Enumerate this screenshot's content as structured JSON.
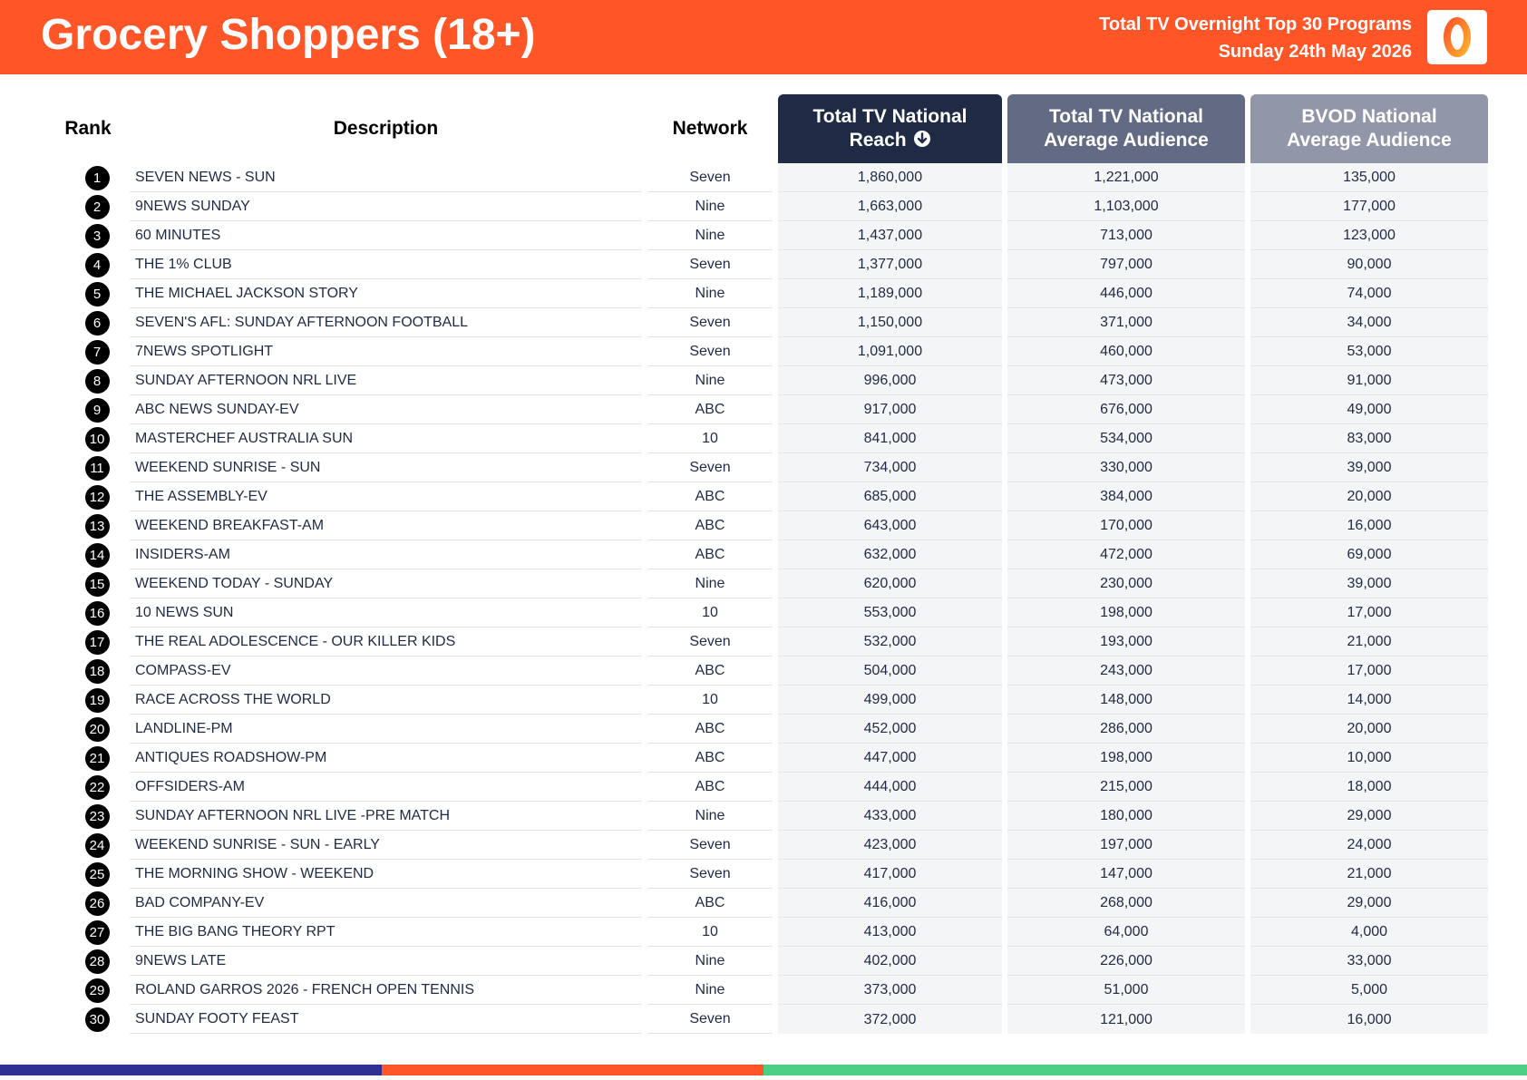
{
  "header": {
    "title": "Grocery Shoppers (18+)",
    "subtitle_line1": "Total TV Overnight Top 30 Programs",
    "subtitle_line2": "Sunday 24th May 2026",
    "logo_icon": "oztam-logo-icon",
    "colors": {
      "header_bg": "#ff5527",
      "dark_navy": "#1f2a44",
      "mid_slate": "#636a83",
      "light_slate": "#9196a8"
    }
  },
  "table": {
    "columns": {
      "rank": "Rank",
      "description": "Description",
      "network": "Network",
      "reach_line1": "Total TV National",
      "reach_line2": "Reach",
      "avg_line1": "Total TV National",
      "avg_line2": "Average Audience",
      "bvod_line1": "BVOD National",
      "bvod_line2": "Average Audience"
    },
    "sort_icon": "sort-descending-icon",
    "rows": [
      {
        "rank": "1",
        "description": "SEVEN NEWS - SUN",
        "network": "Seven",
        "reach": "1,860,000",
        "avg": "1,221,000",
        "bvod": "135,000"
      },
      {
        "rank": "2",
        "description": "9NEWS SUNDAY",
        "network": "Nine",
        "reach": "1,663,000",
        "avg": "1,103,000",
        "bvod": "177,000"
      },
      {
        "rank": "3",
        "description": "60 MINUTES",
        "network": "Nine",
        "reach": "1,437,000",
        "avg": "713,000",
        "bvod": "123,000"
      },
      {
        "rank": "4",
        "description": "THE 1% CLUB",
        "network": "Seven",
        "reach": "1,377,000",
        "avg": "797,000",
        "bvod": "90,000"
      },
      {
        "rank": "5",
        "description": "THE MICHAEL JACKSON STORY",
        "network": "Nine",
        "reach": "1,189,000",
        "avg": "446,000",
        "bvod": "74,000"
      },
      {
        "rank": "6",
        "description": "SEVEN'S AFL: SUNDAY AFTERNOON FOOTBALL",
        "network": "Seven",
        "reach": "1,150,000",
        "avg": "371,000",
        "bvod": "34,000"
      },
      {
        "rank": "7",
        "description": "7NEWS SPOTLIGHT",
        "network": "Seven",
        "reach": "1,091,000",
        "avg": "460,000",
        "bvod": "53,000"
      },
      {
        "rank": "8",
        "description": "SUNDAY AFTERNOON NRL LIVE",
        "network": "Nine",
        "reach": "996,000",
        "avg": "473,000",
        "bvod": "91,000"
      },
      {
        "rank": "9",
        "description": "ABC NEWS SUNDAY-EV",
        "network": "ABC",
        "reach": "917,000",
        "avg": "676,000",
        "bvod": "49,000"
      },
      {
        "rank": "10",
        "description": "MASTERCHEF AUSTRALIA SUN",
        "network": "10",
        "reach": "841,000",
        "avg": "534,000",
        "bvod": "83,000"
      },
      {
        "rank": "11",
        "description": "WEEKEND SUNRISE - SUN",
        "network": "Seven",
        "reach": "734,000",
        "avg": "330,000",
        "bvod": "39,000"
      },
      {
        "rank": "12",
        "description": "THE ASSEMBLY-EV",
        "network": "ABC",
        "reach": "685,000",
        "avg": "384,000",
        "bvod": "20,000"
      },
      {
        "rank": "13",
        "description": "WEEKEND BREAKFAST-AM",
        "network": "ABC",
        "reach": "643,000",
        "avg": "170,000",
        "bvod": "16,000"
      },
      {
        "rank": "14",
        "description": "INSIDERS-AM",
        "network": "ABC",
        "reach": "632,000",
        "avg": "472,000",
        "bvod": "69,000"
      },
      {
        "rank": "15",
        "description": "WEEKEND TODAY - SUNDAY",
        "network": "Nine",
        "reach": "620,000",
        "avg": "230,000",
        "bvod": "39,000"
      },
      {
        "rank": "16",
        "description": "10 NEWS SUN",
        "network": "10",
        "reach": "553,000",
        "avg": "198,000",
        "bvod": "17,000"
      },
      {
        "rank": "17",
        "description": "THE REAL ADOLESCENCE - OUR KILLER KIDS",
        "network": "Seven",
        "reach": "532,000",
        "avg": "193,000",
        "bvod": "21,000"
      },
      {
        "rank": "18",
        "description": "COMPASS-EV",
        "network": "ABC",
        "reach": "504,000",
        "avg": "243,000",
        "bvod": "17,000"
      },
      {
        "rank": "19",
        "description": "RACE ACROSS THE WORLD",
        "network": "10",
        "reach": "499,000",
        "avg": "148,000",
        "bvod": "14,000"
      },
      {
        "rank": "20",
        "description": "LANDLINE-PM",
        "network": "ABC",
        "reach": "452,000",
        "avg": "286,000",
        "bvod": "20,000"
      },
      {
        "rank": "21",
        "description": "ANTIQUES ROADSHOW-PM",
        "network": "ABC",
        "reach": "447,000",
        "avg": "198,000",
        "bvod": "10,000"
      },
      {
        "rank": "22",
        "description": "OFFSIDERS-AM",
        "network": "ABC",
        "reach": "444,000",
        "avg": "215,000",
        "bvod": "18,000"
      },
      {
        "rank": "23",
        "description": "SUNDAY AFTERNOON NRL LIVE -PRE MATCH",
        "network": "Nine",
        "reach": "433,000",
        "avg": "180,000",
        "bvod": "29,000"
      },
      {
        "rank": "24",
        "description": "WEEKEND SUNRISE - SUN - EARLY",
        "network": "Seven",
        "reach": "423,000",
        "avg": "197,000",
        "bvod": "24,000"
      },
      {
        "rank": "25",
        "description": "THE MORNING SHOW - WEEKEND",
        "network": "Seven",
        "reach": "417,000",
        "avg": "147,000",
        "bvod": "21,000"
      },
      {
        "rank": "26",
        "description": "BAD COMPANY-EV",
        "network": "ABC",
        "reach": "416,000",
        "avg": "268,000",
        "bvod": "29,000"
      },
      {
        "rank": "27",
        "description": "THE BIG BANG THEORY RPT",
        "network": "10",
        "reach": "413,000",
        "avg": "64,000",
        "bvod": "4,000"
      },
      {
        "rank": "28",
        "description": "9NEWS LATE",
        "network": "Nine",
        "reach": "402,000",
        "avg": "226,000",
        "bvod": "33,000"
      },
      {
        "rank": "29",
        "description": "ROLAND GARROS 2026 - FRENCH OPEN TENNIS",
        "network": "Nine",
        "reach": "373,000",
        "avg": "51,000",
        "bvod": "5,000"
      },
      {
        "rank": "30",
        "description": "SUNDAY FOOTY FEAST",
        "network": "Seven",
        "reach": "372,000",
        "avg": "121,000",
        "bvod": "16,000"
      }
    ]
  },
  "footer": {
    "bar_colors": [
      "#2e3192",
      "#ff5527",
      "#4cce84"
    ]
  }
}
